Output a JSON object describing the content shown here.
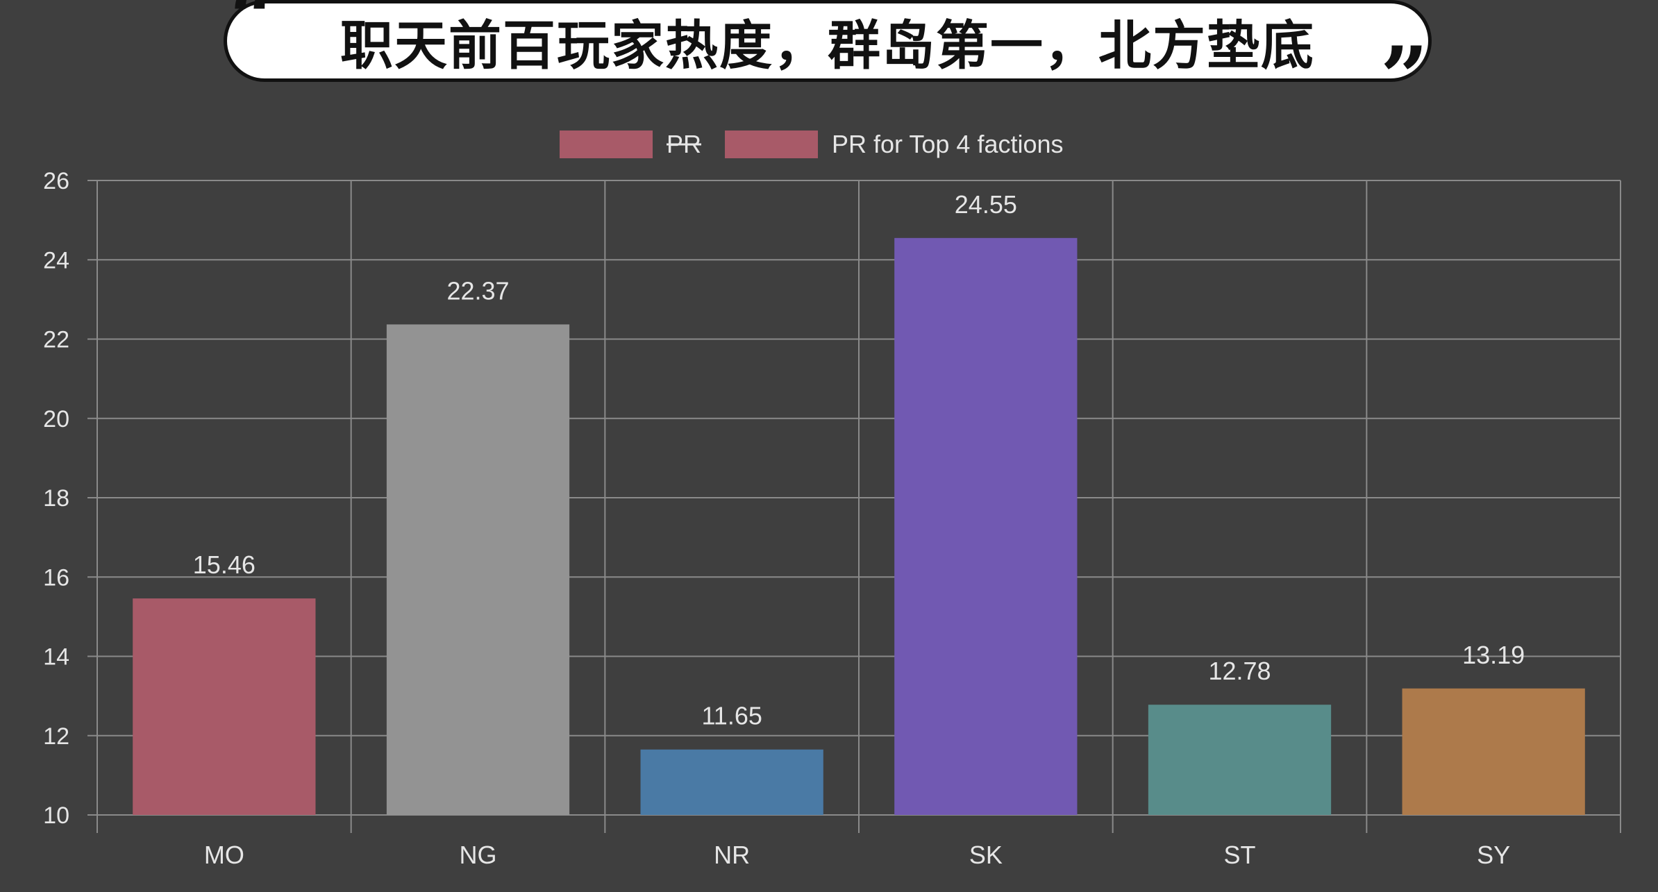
{
  "header": {
    "title": "职天前百玩家热度，群岛第一，北方垫底",
    "quote_open": "“",
    "quote_close": "”"
  },
  "colors": {
    "background": "#3f3f3f",
    "grid": "#8a8a8a",
    "text": "#e6e6e6"
  },
  "chart_data": {
    "type": "bar",
    "title": "",
    "xlabel": "",
    "ylabel": "",
    "ylim": [
      10,
      26
    ],
    "yticks": [
      10,
      12,
      14,
      16,
      18,
      20,
      22,
      24,
      26
    ],
    "grid": true,
    "legend_position": "top",
    "legend": [
      {
        "label": "PR",
        "color": "#a85a68",
        "hidden": true
      },
      {
        "label": "PR for Top 4 factions",
        "color": "#a85a68",
        "hidden": false
      }
    ],
    "categories": [
      "MO",
      "NG",
      "NR",
      "SK",
      "ST",
      "SY"
    ],
    "values": [
      15.46,
      22.37,
      11.65,
      24.55,
      12.78,
      13.19
    ],
    "value_labels": [
      "15.46",
      "22.37",
      "11.65",
      "24.55",
      "12.78",
      "13.19"
    ],
    "bar_colors": [
      "#a85a68",
      "#939393",
      "#4a7aa5",
      "#7159b2",
      "#588c8a",
      "#ad7a4b"
    ]
  }
}
